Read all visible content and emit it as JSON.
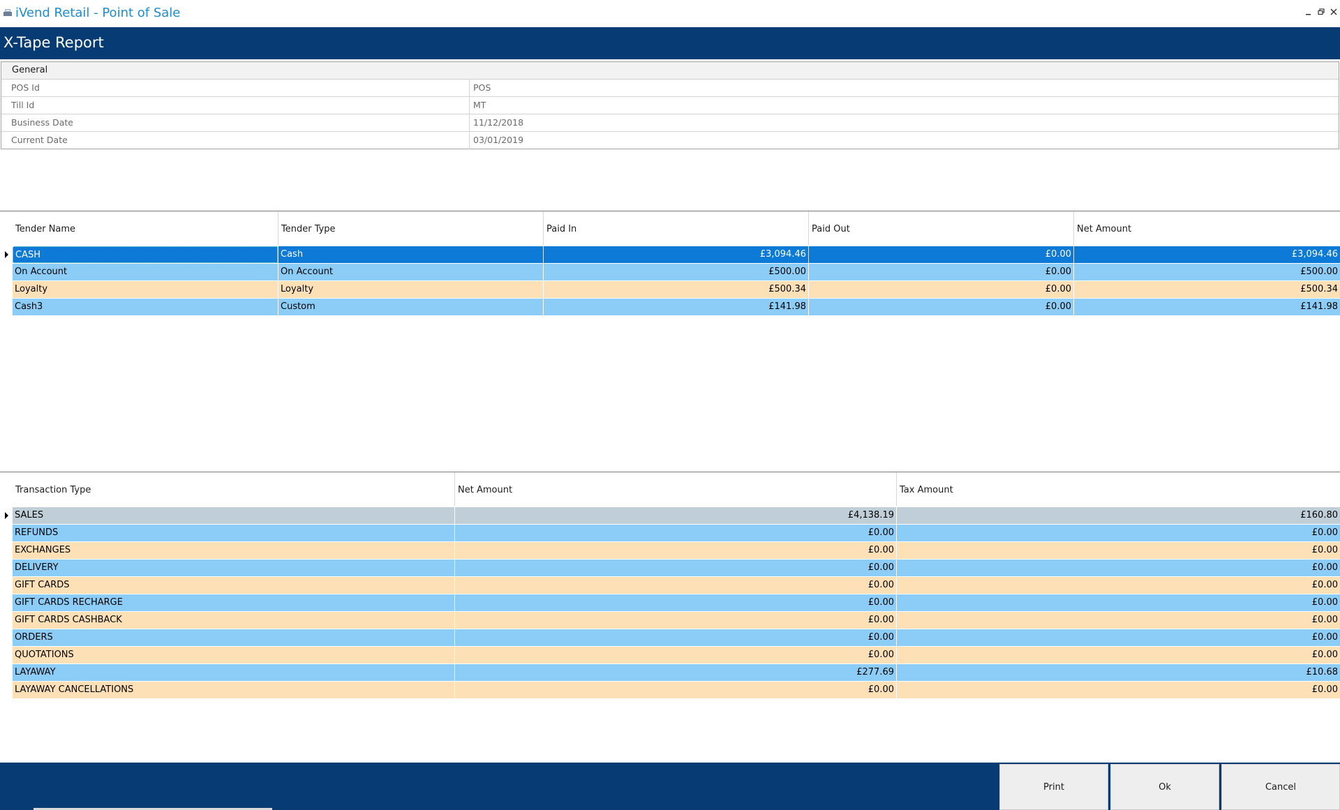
{
  "window": {
    "title": "iVend Retail - Point of Sale"
  },
  "header": {
    "title": "X-Tape Report"
  },
  "general": {
    "heading": "General",
    "rows": [
      {
        "label": "POS Id",
        "value": "POS"
      },
      {
        "label": "Till Id",
        "value": "MT"
      },
      {
        "label": "Business Date",
        "value": "11/12/2018"
      },
      {
        "label": "Current Date",
        "value": "03/01/2019"
      }
    ]
  },
  "tenders": {
    "columns": [
      "Tender Name",
      "Tender Type",
      "Paid In",
      "Paid Out",
      "Net Amount"
    ],
    "rows": [
      {
        "name": "CASH",
        "type": "Cash",
        "paid_in": "£3,094.46",
        "paid_out": "£0.00",
        "net": "£3,094.46"
      },
      {
        "name": "On Account",
        "type": "On Account",
        "paid_in": "£500.00",
        "paid_out": "£0.00",
        "net": "£500.00"
      },
      {
        "name": "Loyalty",
        "type": "Loyalty",
        "paid_in": "£500.34",
        "paid_out": "£0.00",
        "net": "£500.34"
      },
      {
        "name": "Cash3",
        "type": "Custom",
        "paid_in": "£141.98",
        "paid_out": "£0.00",
        "net": "£141.98"
      }
    ]
  },
  "transactions": {
    "columns": [
      "Transaction Type",
      "Net Amount",
      "Tax Amount"
    ],
    "rows": [
      {
        "type": "SALES",
        "net": "£4,138.19",
        "tax": "£160.80"
      },
      {
        "type": "REFUNDS",
        "net": "£0.00",
        "tax": "£0.00"
      },
      {
        "type": "EXCHANGES",
        "net": "£0.00",
        "tax": "£0.00"
      },
      {
        "type": "DELIVERY",
        "net": "£0.00",
        "tax": "£0.00"
      },
      {
        "type": "GIFT CARDS",
        "net": "£0.00",
        "tax": "£0.00"
      },
      {
        "type": "GIFT CARDS RECHARGE",
        "net": "£0.00",
        "tax": "£0.00"
      },
      {
        "type": "GIFT CARDS CASHBACK",
        "net": "£0.00",
        "tax": "£0.00"
      },
      {
        "type": "ORDERS",
        "net": "£0.00",
        "tax": "£0.00"
      },
      {
        "type": "QUOTATIONS",
        "net": "£0.00",
        "tax": "£0.00"
      },
      {
        "type": "LAYAWAY",
        "net": "£277.69",
        "tax": "£10.68"
      },
      {
        "type": "LAYAWAY CANCELLATIONS",
        "net": "£0.00",
        "tax": "£0.00"
      }
    ]
  },
  "footer": {
    "print_label": "Print",
    "ok_label": "Ok",
    "cancel_label": "Cancel"
  },
  "icons": {
    "app": "pos-register-icon",
    "minimize": "minimize-icon",
    "restore": "restore-icon",
    "close": "close-icon"
  },
  "colors": {
    "header_bg": "#063c73",
    "title_text": "#1a8fd1",
    "row_blue": "#8ccdf7",
    "row_peach": "#fde0b5",
    "row_selected": "#0c7ad6"
  }
}
